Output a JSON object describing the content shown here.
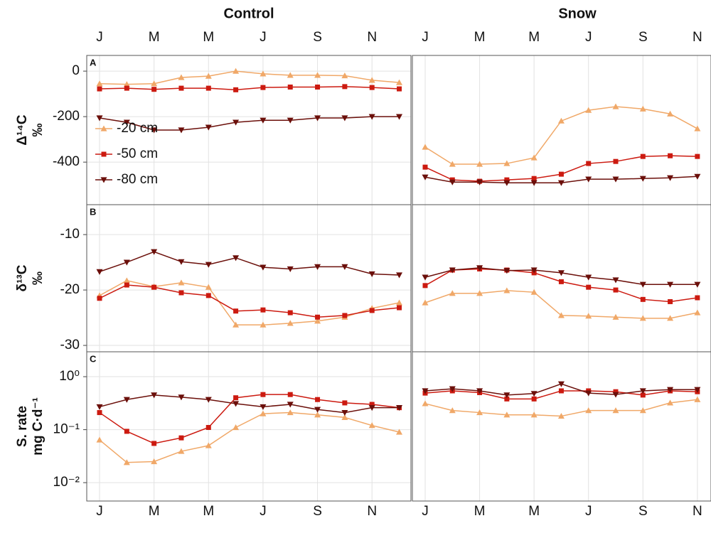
{
  "chart_data": [
    {
      "type": "line",
      "title": "Control",
      "panel_label": "A",
      "ylabel": [
        "Δ¹⁴C",
        "‰"
      ],
      "legend": "left",
      "grid": true,
      "xtick_side": "top",
      "x": [
        1,
        2,
        3,
        4,
        5,
        6,
        7,
        8,
        9,
        10,
        11,
        12
      ],
      "xlim": [
        0.53,
        12.43
      ],
      "xticks": [
        {
          "value": 1,
          "label": "J"
        },
        {
          "value": 3,
          "label": "M"
        },
        {
          "value": 5,
          "label": "M"
        },
        {
          "value": 7,
          "label": "J"
        },
        {
          "value": 9,
          "label": "S"
        },
        {
          "value": 11,
          "label": "N"
        }
      ],
      "ylim": [
        -587,
        69
      ],
      "yticks": [
        0,
        -200,
        -400
      ],
      "series": [
        {
          "name": "-20 cm",
          "color": "#f0a868",
          "marker": "up",
          "values": [
            -55,
            -58,
            -55,
            -28,
            -22,
            0,
            -12,
            -18,
            -18,
            -20,
            -40,
            -50
          ]
        },
        {
          "name": "-50 cm",
          "color": "#cc1a10",
          "marker": "square",
          "values": [
            -78,
            -75,
            -80,
            -75,
            -75,
            -82,
            -72,
            -70,
            -70,
            -68,
            -72,
            -78
          ]
        },
        {
          "name": "-80 cm",
          "color": "#6b0f0a",
          "marker": "down",
          "values": [
            -206,
            -225,
            -259,
            -259,
            -247,
            -225,
            -216,
            -216,
            -206,
            -206,
            -200,
            -200
          ]
        }
      ]
    },
    {
      "type": "line",
      "title": "Snow",
      "grid": true,
      "xtick_side": "top",
      "x": [
        1,
        2,
        3,
        4,
        5,
        6,
        7,
        8,
        9,
        10,
        11
      ],
      "xlim": [
        0.53,
        11.5
      ],
      "xticks": [
        {
          "value": 1,
          "label": "J"
        },
        {
          "value": 3,
          "label": "M"
        },
        {
          "value": 5,
          "label": "M"
        },
        {
          "value": 7,
          "label": "J"
        },
        {
          "value": 9,
          "label": "S"
        },
        {
          "value": 11,
          "label": "N"
        }
      ],
      "ylim": [
        -587,
        69
      ],
      "series": [
        {
          "color": "#f0a868",
          "marker": "up",
          "values": [
            -334,
            -409,
            -409,
            -406,
            -381,
            -219,
            -172,
            -156,
            -166,
            -188,
            -253
          ]
        },
        {
          "color": "#cc1a10",
          "marker": "square",
          "values": [
            -422,
            -478,
            -484,
            -478,
            -472,
            -453,
            -406,
            -397,
            -375,
            -372,
            -375
          ]
        },
        {
          "color": "#6b0f0a",
          "marker": "down",
          "values": [
            -466,
            -488,
            -488,
            -491,
            -491,
            -491,
            -475,
            -475,
            -472,
            -469,
            -463
          ]
        }
      ]
    },
    {
      "type": "line",
      "panel_label": "B",
      "ylabel": [
        "δ¹³C",
        "‰"
      ],
      "grid": true,
      "x": [
        1,
        2,
        3,
        4,
        5,
        6,
        7,
        8,
        9,
        10,
        11,
        12
      ],
      "xlim": [
        0.53,
        12.43
      ],
      "xticks": [
        1,
        3,
        5,
        7,
        9,
        11
      ],
      "ylim": [
        -31.15,
        -4.6
      ],
      "yticks": [
        -10,
        -20,
        -30
      ],
      "series": [
        {
          "color": "#f0a868",
          "marker": "up",
          "values": [
            -21.0,
            -18.3,
            -19.4,
            -18.7,
            -19.5,
            -26.3,
            -26.3,
            -26.0,
            -25.6,
            -24.9,
            -23.3,
            -22.3
          ]
        },
        {
          "color": "#cc1a10",
          "marker": "square",
          "values": [
            -21.5,
            -19.1,
            -19.5,
            -20.5,
            -21.0,
            -23.8,
            -23.6,
            -24.1,
            -24.9,
            -24.6,
            -23.7,
            -23.2
          ]
        },
        {
          "color": "#6b0f0a",
          "marker": "down",
          "values": [
            -16.7,
            -15.0,
            -13.1,
            -14.9,
            -15.4,
            -14.2,
            -15.9,
            -16.2,
            -15.8,
            -15.8,
            -17.1,
            -17.3
          ]
        }
      ]
    },
    {
      "type": "line",
      "grid": true,
      "x": [
        1,
        2,
        3,
        4,
        5,
        6,
        7,
        8,
        9,
        10,
        11
      ],
      "xlim": [
        0.53,
        11.5
      ],
      "xticks": [
        1,
        3,
        5,
        7,
        9,
        11
      ],
      "ylim": [
        -31.15,
        -4.6
      ],
      "series": [
        {
          "color": "#f0a868",
          "marker": "up",
          "values": [
            -22.3,
            -20.6,
            -20.6,
            -20.1,
            -20.4,
            -24.6,
            -24.7,
            -24.9,
            -25.1,
            -25.1,
            -24.1
          ]
        },
        {
          "color": "#cc1a10",
          "marker": "square",
          "values": [
            -19.2,
            -16.4,
            -16.2,
            -16.4,
            -16.9,
            -18.5,
            -19.5,
            -20.0,
            -21.7,
            -22.1,
            -21.4
          ]
        },
        {
          "color": "#6b0f0a",
          "marker": "down",
          "values": [
            -17.7,
            -16.4,
            -16.0,
            -16.5,
            -16.4,
            -16.9,
            -17.7,
            -18.2,
            -19.0,
            -19.0,
            -19.0
          ]
        }
      ]
    },
    {
      "type": "line",
      "panel_label": "C",
      "ylabel": [
        "S. rate",
        "mg C·d⁻¹"
      ],
      "grid": true,
      "log_y": true,
      "xtick_side": "bottom",
      "x": [
        1,
        2,
        3,
        4,
        5,
        6,
        7,
        8,
        9,
        10,
        11,
        12
      ],
      "xlim": [
        0.53,
        12.43
      ],
      "xticks": [
        {
          "value": 1,
          "label": "J"
        },
        {
          "value": 3,
          "label": "M"
        },
        {
          "value": 5,
          "label": "M"
        },
        {
          "value": 7,
          "label": "J"
        },
        {
          "value": 9,
          "label": "S"
        },
        {
          "value": 11,
          "label": "N"
        }
      ],
      "ylim": [
        0.0045,
        2.95
      ],
      "yticks": [
        {
          "value": 1,
          "label": "10⁰"
        },
        {
          "value": 0.1,
          "label": "10⁻¹"
        },
        {
          "value": 0.01,
          "label": "10⁻²"
        }
      ],
      "series": [
        {
          "color": "#f0a868",
          "marker": "up",
          "values": [
            0.064,
            0.024,
            0.025,
            0.039,
            0.05,
            0.11,
            0.2,
            0.21,
            0.19,
            0.17,
            0.12,
            0.09
          ]
        },
        {
          "color": "#cc1a10",
          "marker": "square",
          "values": [
            0.21,
            0.093,
            0.055,
            0.07,
            0.11,
            0.4,
            0.46,
            0.46,
            0.37,
            0.32,
            0.3,
            0.26
          ]
        },
        {
          "color": "#6b0f0a",
          "marker": "down",
          "values": [
            0.27,
            0.37,
            0.45,
            0.41,
            0.37,
            0.31,
            0.27,
            0.3,
            0.24,
            0.21,
            0.26,
            0.26
          ]
        }
      ]
    },
    {
      "type": "line",
      "grid": true,
      "log_y": true,
      "xtick_side": "bottom",
      "x": [
        1,
        2,
        3,
        4,
        5,
        6,
        7,
        8,
        9,
        10,
        11
      ],
      "xlim": [
        0.53,
        11.5
      ],
      "xticks": [
        {
          "value": 1,
          "label": "J"
        },
        {
          "value": 3,
          "label": "M"
        },
        {
          "value": 5,
          "label": "M"
        },
        {
          "value": 7,
          "label": "J"
        },
        {
          "value": 9,
          "label": "S"
        },
        {
          "value": 11,
          "label": "N"
        }
      ],
      "ylim": [
        0.0045,
        2.95
      ],
      "series": [
        {
          "color": "#f0a868",
          "marker": "up",
          "values": [
            0.31,
            0.23,
            0.21,
            0.19,
            0.19,
            0.18,
            0.23,
            0.23,
            0.23,
            0.32,
            0.37
          ]
        },
        {
          "color": "#cc1a10",
          "marker": "square",
          "values": [
            0.49,
            0.54,
            0.5,
            0.38,
            0.38,
            0.54,
            0.54,
            0.52,
            0.45,
            0.54,
            0.52
          ]
        },
        {
          "color": "#6b0f0a",
          "marker": "down",
          "values": [
            0.54,
            0.59,
            0.54,
            0.45,
            0.48,
            0.73,
            0.49,
            0.46,
            0.54,
            0.57,
            0.57
          ]
        }
      ]
    }
  ]
}
